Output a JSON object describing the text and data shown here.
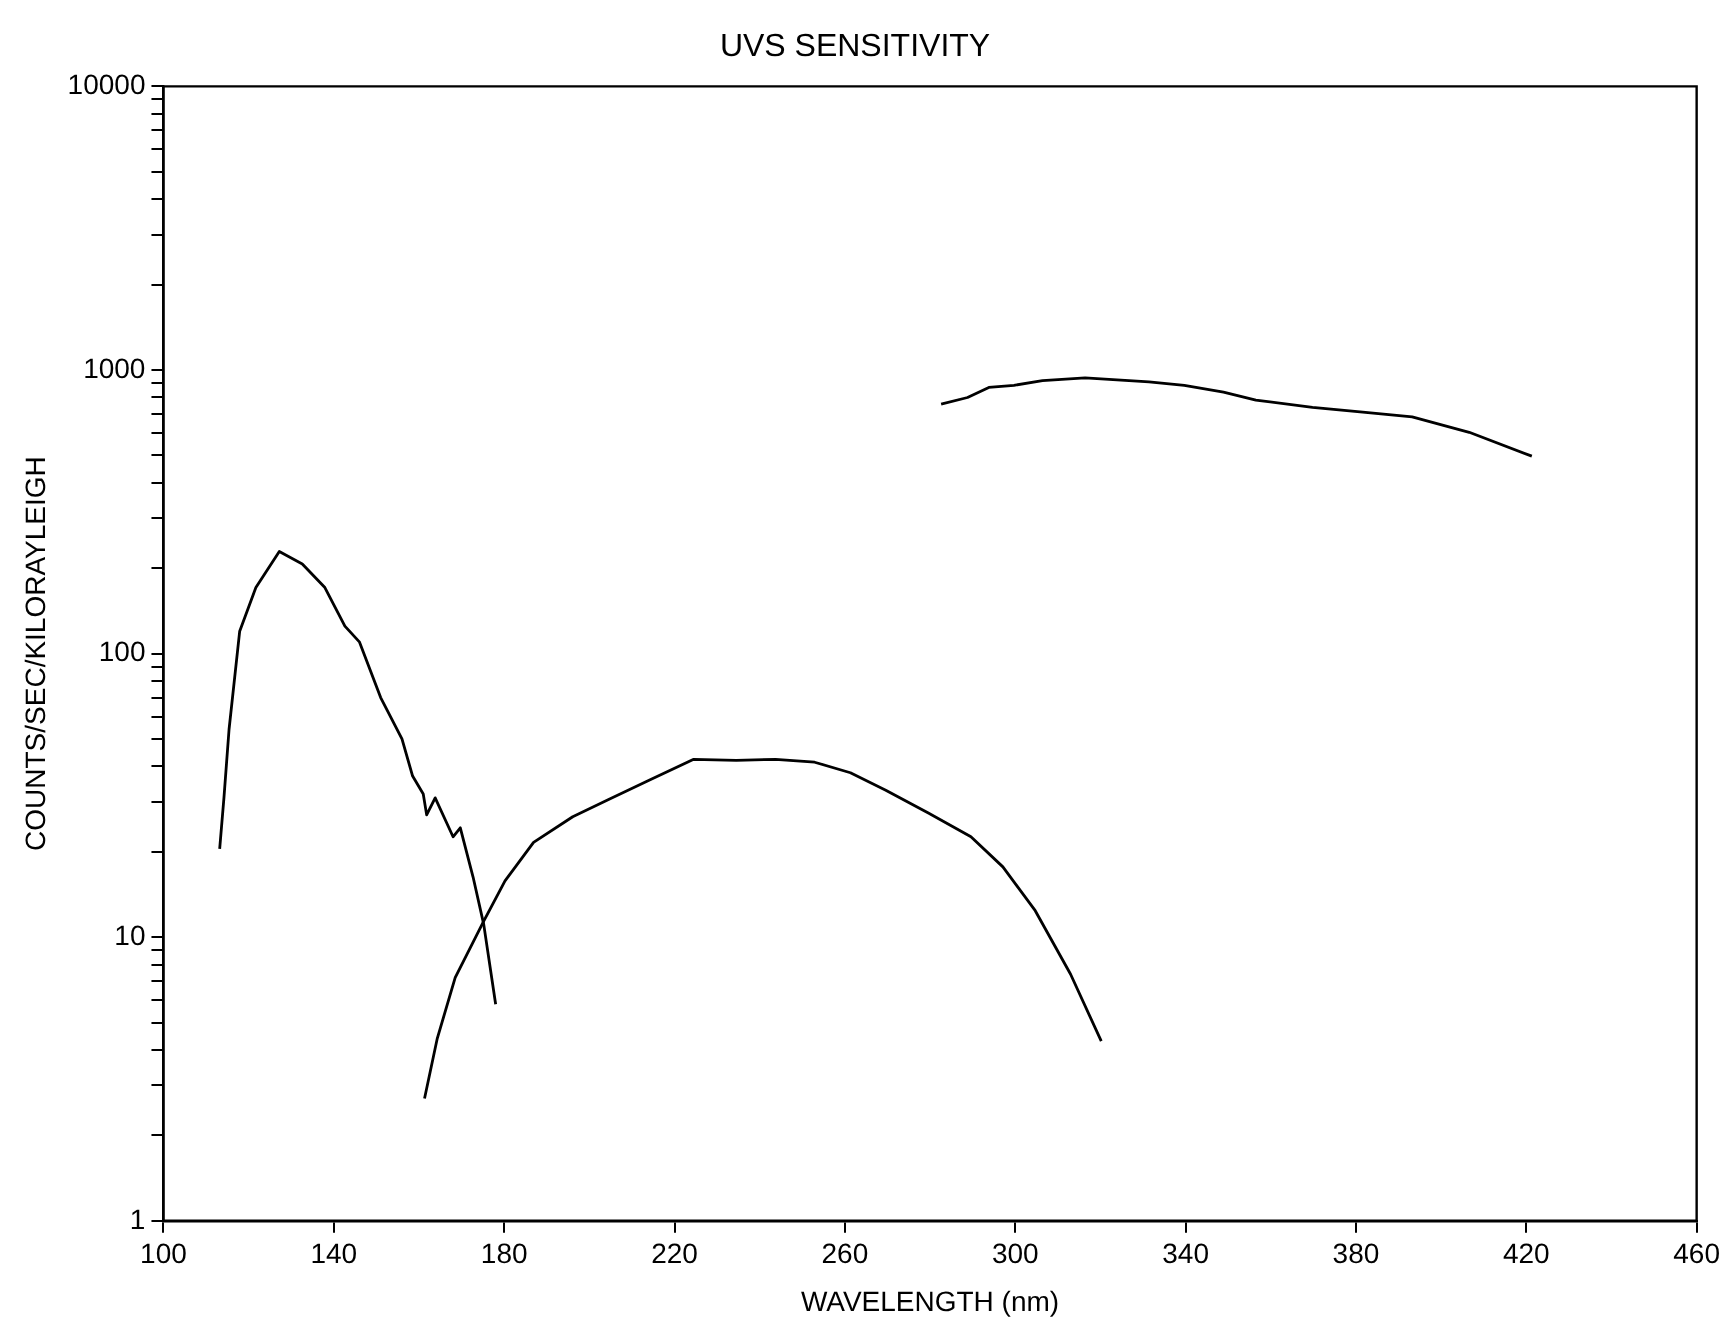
{
  "chart_data": {
    "type": "line",
    "title": "UVS SENSITIVITY",
    "xlabel": "WAVELENGTH (nm)",
    "ylabel": "COUNTS/SEC/KILORAYLEIGH",
    "log": "y",
    "grid": false,
    "legend": false,
    "marker": "none",
    "line_style": "solid",
    "xlim": [
      100,
      460
    ],
    "xticks": [
      100,
      140,
      180,
      220,
      260,
      300,
      340,
      380,
      420,
      460
    ],
    "ylim": [
      1,
      10000
    ],
    "yticks": [
      1,
      {
        "value": 2,
        "label": null
      },
      {
        "value": 3,
        "label": null
      },
      {
        "value": 4,
        "label": null
      },
      {
        "value": 5,
        "label": null
      },
      {
        "value": 6,
        "label": null
      },
      {
        "value": 7,
        "label": null
      },
      {
        "value": 8,
        "label": null
      },
      {
        "value": 9,
        "label": null
      },
      10,
      {
        "value": 20,
        "label": null
      },
      {
        "value": 30,
        "label": null
      },
      {
        "value": 40,
        "label": null
      },
      {
        "value": 50,
        "label": null
      },
      {
        "value": 60,
        "label": null
      },
      {
        "value": 70,
        "label": null
      },
      {
        "value": 80,
        "label": null
      },
      {
        "value": 90,
        "label": null
      },
      100,
      {
        "value": 200,
        "label": null
      },
      {
        "value": 300,
        "label": null
      },
      {
        "value": 400,
        "label": null
      },
      {
        "value": 500,
        "label": null
      },
      {
        "value": 600,
        "label": null
      },
      {
        "value": 700,
        "label": null
      },
      {
        "value": 800,
        "label": null
      },
      {
        "value": 900,
        "label": null
      },
      1000,
      {
        "value": 2000,
        "label": null
      },
      {
        "value": 3000,
        "label": null
      },
      {
        "value": 4000,
        "label": null
      },
      {
        "value": 5000,
        "label": null
      },
      {
        "value": 6000,
        "label": null
      },
      {
        "value": 7000,
        "label": null
      },
      {
        "value": 8000,
        "label": null
      },
      {
        "value": 9000,
        "label": null
      },
      10000
    ],
    "series": [
      {
        "color": "#000000",
        "x": [
          113.2,
          114.2,
          115.4,
          117.9,
          121.7,
          127.2,
          132.6,
          137.9,
          142.6,
          146,
          151,
          156,
          158.5,
          161,
          161.8,
          163.8,
          168,
          169.7,
          172.7,
          175.2,
          178
        ],
        "values": [
          20.5,
          31,
          54,
          120,
          171,
          229,
          207,
          171,
          125,
          110,
          70,
          50,
          37,
          32,
          27,
          31,
          22.6,
          24.3,
          16.3,
          11.1,
          5.8
        ]
      },
      {
        "color": "#000000",
        "x": [
          161.3,
          164.3,
          168.5,
          175.2,
          180.2,
          186.9,
          196.1,
          204.4,
          214.4,
          224.5,
          234.5,
          243.7,
          252.9,
          261.3,
          269.6,
          279.6,
          289.6,
          297.1,
          304.7,
          313,
          320.2
        ],
        "values": [
          2.7,
          4.4,
          7.2,
          11.4,
          15.8,
          21.6,
          26.6,
          30.5,
          36,
          42.4,
          42,
          42.4,
          41.4,
          38,
          33,
          27.4,
          22.6,
          17.7,
          12.4,
          7.4,
          4.3
        ]
      },
      {
        "color": "#000000",
        "x": [
          282.6,
          288.8,
          293.8,
          299.7,
          306.4,
          316.4,
          331.4,
          339.7,
          348.9,
          356.5,
          369.8,
          381.6,
          393.2,
          406.6,
          421.3
        ],
        "values": [
          758,
          800,
          868,
          883,
          918,
          938,
          908,
          883,
          836,
          783,
          738,
          710,
          684,
          603,
          497
        ]
      }
    ]
  }
}
